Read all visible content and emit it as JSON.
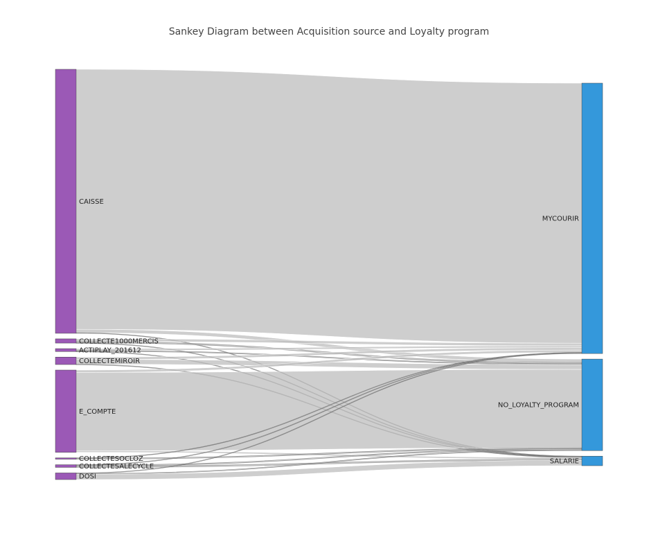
{
  "chart_data": {
    "type": "sankey",
    "title": "Sankey Diagram between Acquisition source and Loyalty program",
    "nodes": [
      {
        "id": "CAISSE",
        "label": "CAISSE",
        "column": 0,
        "color": "#9b59b6"
      },
      {
        "id": "COLLECTE1000MERCIS",
        "label": "COLLECTE1000MERCIS",
        "column": 0,
        "color": "#9b59b6"
      },
      {
        "id": "ACTIPLAY_201612",
        "label": "ACTIPLAY_201612",
        "column": 0,
        "color": "#9b59b6"
      },
      {
        "id": "COLLECTEMIROIR",
        "label": "COLLECTEMIROIR",
        "column": 0,
        "color": "#9b59b6"
      },
      {
        "id": "E_COMPTE",
        "label": "E_COMPTE",
        "column": 0,
        "color": "#9b59b6"
      },
      {
        "id": "COLLECTESOCLOZ",
        "label": "COLLECTESOCLOZ",
        "column": 0,
        "color": "#9b59b6"
      },
      {
        "id": "COLLECTESALECYCLE",
        "label": "COLLECTESALECYCLE",
        "column": 0,
        "color": "#9b59b6"
      },
      {
        "id": "DOSI",
        "label": "DOSI",
        "column": 0,
        "color": "#9b59b6"
      },
      {
        "id": "MYCOURIR",
        "label": "MYCOURIR",
        "column": 1,
        "color": "#3498db"
      },
      {
        "id": "NO_LOYALTY_PROGRAM",
        "label": "NO_LOYALTY_PROGRAM",
        "column": 1,
        "color": "#3498db"
      },
      {
        "id": "SALARIE",
        "label": "SALARIE",
        "column": 1,
        "color": "#3498db"
      }
    ],
    "links": [
      {
        "source": "CAISSE",
        "target": "MYCOURIR",
        "value": 1960
      },
      {
        "source": "CAISSE",
        "target": "NO_LOYALTY_PROGRAM",
        "value": 26
      },
      {
        "source": "CAISSE",
        "target": "SALARIE",
        "value": 4
      },
      {
        "source": "COLLECTE1000MERCIS",
        "target": "MYCOURIR",
        "value": 20
      },
      {
        "source": "COLLECTE1000MERCIS",
        "target": "NO_LOYALTY_PROGRAM",
        "value": 10
      },
      {
        "source": "COLLECTE1000MERCIS",
        "target": "SALARIE",
        "value": 2
      },
      {
        "source": "ACTIPLAY_201612",
        "target": "MYCOURIR",
        "value": 14
      },
      {
        "source": "ACTIPLAY_201612",
        "target": "NO_LOYALTY_PROGRAM",
        "value": 6
      },
      {
        "source": "ACTIPLAY_201612",
        "target": "SALARIE",
        "value": 2
      },
      {
        "source": "COLLECTEMIROIR",
        "target": "MYCOURIR",
        "value": 18
      },
      {
        "source": "COLLECTEMIROIR",
        "target": "NO_LOYALTY_PROGRAM",
        "value": 36
      },
      {
        "source": "COLLECTEMIROIR",
        "target": "SALARIE",
        "value": 2
      },
      {
        "source": "E_COMPTE",
        "target": "MYCOURIR",
        "value": 18
      },
      {
        "source": "E_COMPTE",
        "target": "NO_LOYALTY_PROGRAM",
        "value": 590
      },
      {
        "source": "E_COMPTE",
        "target": "SALARIE",
        "value": 12
      },
      {
        "source": "COLLECTESOCLOZ",
        "target": "MYCOURIR",
        "value": 2
      },
      {
        "source": "COLLECTESOCLOZ",
        "target": "NO_LOYALTY_PROGRAM",
        "value": 8
      },
      {
        "source": "COLLECTESALECYCLE",
        "target": "MYCOURIR",
        "value": 2
      },
      {
        "source": "COLLECTESALECYCLE",
        "target": "NO_LOYALTY_PROGRAM",
        "value": 8
      },
      {
        "source": "COLLECTESALECYCLE",
        "target": "SALARIE",
        "value": 10
      },
      {
        "source": "DOSI",
        "target": "MYCOURIR",
        "value": 4
      },
      {
        "source": "DOSI",
        "target": "NO_LOYALTY_PROGRAM",
        "value": 6
      },
      {
        "source": "DOSI",
        "target": "SALARIE",
        "value": 40
      }
    ],
    "link_color": "#bdbdbd"
  }
}
